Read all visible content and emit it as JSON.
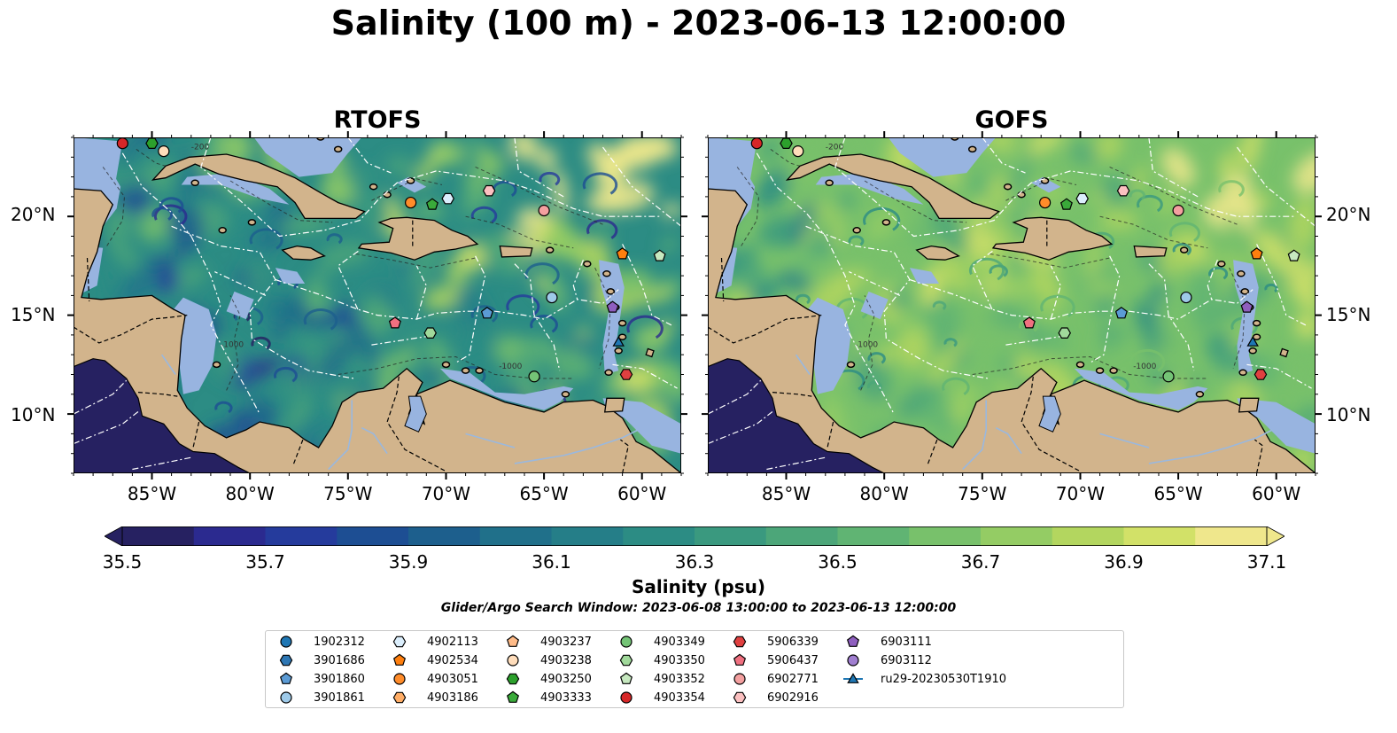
{
  "figure": {
    "title": "Salinity (100 m) - 2023-06-13 12:00:00",
    "panels": [
      {
        "title": "RTOFS",
        "model": "rtofs"
      },
      {
        "title": "GOFS",
        "model": "gofs"
      }
    ],
    "x_ticks": [
      "85°W",
      "80°W",
      "75°W",
      "70°W",
      "65°W",
      "60°W"
    ],
    "y_ticks": [
      "20°N",
      "15°N",
      "10°N"
    ],
    "colorbar": {
      "label": "Salinity (psu)",
      "ticks": [
        "35.5",
        "35.7",
        "35.9",
        "36.1",
        "36.3",
        "36.5",
        "36.7",
        "36.9",
        "37.1"
      ],
      "min": 35.5,
      "max": 37.1,
      "colors": [
        "#262161",
        "#2b2a8f",
        "#253b9c",
        "#1d4e93",
        "#1d5f8d",
        "#20708a",
        "#257e88",
        "#2c8c84",
        "#3a997f",
        "#4ca679",
        "#60b473",
        "#78c16b",
        "#94cc64",
        "#b3d65f",
        "#d2e168",
        "#efe78c"
      ]
    },
    "contour_labels": [
      "-1000",
      "-200",
      "-1000"
    ],
    "search_window": "Glider/Argo Search Window: 2023-06-08 13:00:00 to 2023-06-13 12:00:00"
  },
  "map_extent": {
    "lon": [
      -89,
      -58
    ],
    "lat": [
      7,
      24
    ]
  },
  "colors": {
    "land": "#d2b48c",
    "shallow": "#98b4e0",
    "deep_pacific": "#262161",
    "contour": "#222222"
  },
  "legend": [
    {
      "id": "1902312",
      "shape": "circle",
      "color": "#1f77b4"
    },
    {
      "id": "3901686",
      "shape": "hexagon",
      "color": "#2e77b4"
    },
    {
      "id": "3901860",
      "shape": "pentagon",
      "color": "#5b9bd5"
    },
    {
      "id": "3901861",
      "shape": "circle",
      "color": "#9ecae9"
    },
    {
      "id": "4902113",
      "shape": "hexagon",
      "color": "#dbeefc"
    },
    {
      "id": "4902534",
      "shape": "pentagon",
      "color": "#ff7f0e"
    },
    {
      "id": "4903051",
      "shape": "circle",
      "color": "#ff8c2a"
    },
    {
      "id": "4903186",
      "shape": "hexagon",
      "color": "#ffad66"
    },
    {
      "id": "4903237",
      "shape": "pentagon",
      "color": "#ffbb88"
    },
    {
      "id": "4903238",
      "shape": "circle",
      "color": "#ffddbb"
    },
    {
      "id": "4903250",
      "shape": "hexagon",
      "color": "#2ca02c"
    },
    {
      "id": "4903333",
      "shape": "pentagon",
      "color": "#3aaa3a"
    },
    {
      "id": "4903349",
      "shape": "circle",
      "color": "#74c476"
    },
    {
      "id": "4903350",
      "shape": "hexagon",
      "color": "#a1d99b"
    },
    {
      "id": "4903352",
      "shape": "pentagon",
      "color": "#c7e9c0"
    },
    {
      "id": "4903354",
      "shape": "circle",
      "color": "#d62728"
    },
    {
      "id": "5906339",
      "shape": "hexagon",
      "color": "#e04040"
    },
    {
      "id": "5906437",
      "shape": "pentagon",
      "color": "#f07080"
    },
    {
      "id": "6902771",
      "shape": "circle",
      "color": "#f4a0a0"
    },
    {
      "id": "6902916",
      "shape": "hexagon",
      "color": "#fbc0c0"
    },
    {
      "id": "6903111",
      "shape": "pentagon",
      "color": "#8f5fbf"
    },
    {
      "id": "6903112",
      "shape": "circle",
      "color": "#a07ed0"
    },
    {
      "id": "ru29-20230530T1910",
      "shape": "triangle-line",
      "color": "#1f77b4"
    }
  ],
  "markers": [
    {
      "id": "4903354",
      "lon": -86.5,
      "lat": 23.7
    },
    {
      "id": "4903250",
      "lon": -85.0,
      "lat": 23.7
    },
    {
      "id": "4903238",
      "lon": -84.4,
      "lat": 23.3
    },
    {
      "id": "4903051",
      "lon": -71.8,
      "lat": 20.7
    },
    {
      "id": "4903333",
      "lon": -70.7,
      "lat": 20.6
    },
    {
      "id": "4902113",
      "lon": -69.9,
      "lat": 20.9
    },
    {
      "id": "6902916",
      "lon": -67.8,
      "lat": 21.3
    },
    {
      "id": "6902771",
      "lon": -65.0,
      "lat": 20.3
    },
    {
      "id": "4902534",
      "lon": -61.0,
      "lat": 18.1
    },
    {
      "id": "4903352",
      "lon": -59.1,
      "lat": 18.0
    },
    {
      "id": "3901861",
      "lon": -64.6,
      "lat": 15.9
    },
    {
      "id": "3901860",
      "lon": -67.9,
      "lat": 15.1
    },
    {
      "id": "6903111",
      "lon": -61.5,
      "lat": 15.4
    },
    {
      "id": "5906437",
      "lon": -72.6,
      "lat": 14.6
    },
    {
      "id": "4903350",
      "lon": -70.8,
      "lat": 14.1
    },
    {
      "id": "ru29-20230530T1910",
      "lon": -61.2,
      "lat": 13.6
    },
    {
      "id": "4903349",
      "lon": -65.5,
      "lat": 11.9
    },
    {
      "id": "5906339",
      "lon": -60.8,
      "lat": 12.0
    }
  ]
}
